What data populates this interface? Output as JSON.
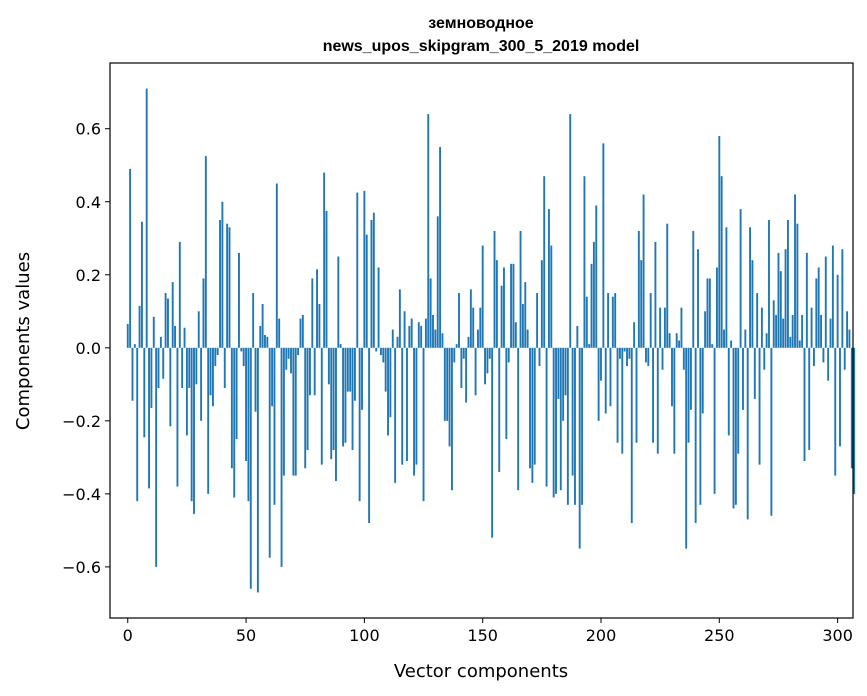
{
  "chart_data": {
    "type": "bar",
    "title": "земноводное",
    "subtitle": "news_upos_skipgram_300_5_2019 model",
    "xlabel": "Vector components",
    "ylabel": "Components values",
    "xlim": [
      -7.5,
      306.5
    ],
    "ylim": [
      -0.74,
      0.78
    ],
    "xticks": [
      0,
      50,
      100,
      150,
      200,
      250,
      300
    ],
    "yticks": [
      -0.6,
      -0.4,
      -0.2,
      0.0,
      0.2,
      0.4,
      0.6
    ],
    "ytick_labels": [
      "−0.6",
      "−0.4",
      "−0.2",
      "0.0",
      "0.2",
      "0.4",
      "0.6"
    ],
    "bar_color": "#1f77b4",
    "values": [
      0.065,
      0.49,
      -0.145,
      0.01,
      -0.42,
      0.115,
      0.345,
      -0.245,
      0.71,
      -0.385,
      -0.165,
      0.085,
      -0.6,
      -0.11,
      0.03,
      -0.085,
      0.15,
      0.135,
      -0.215,
      0.18,
      0.06,
      -0.38,
      0.29,
      -0.11,
      0.055,
      -0.24,
      -0.11,
      -0.42,
      -0.455,
      -0.1,
      0.1,
      -0.2,
      0.19,
      0.525,
      -0.4,
      -0.13,
      -0.16,
      -0.05,
      -0.02,
      0.35,
      0.4,
      -0.11,
      0.34,
      0.33,
      -0.33,
      -0.41,
      -0.25,
      0.26,
      -0.01,
      -0.05,
      -0.31,
      -0.42,
      -0.66,
      0.15,
      -0.175,
      -0.67,
      0.06,
      0.12,
      0.035,
      0.03,
      -0.575,
      -0.16,
      -0.43,
      0.45,
      0.08,
      -0.6,
      -0.35,
      -0.06,
      -0.03,
      -0.07,
      -0.35,
      -0.35,
      -0.02,
      0.08,
      0.09,
      -0.33,
      -0.28,
      -0.13,
      0.19,
      -0.13,
      0.215,
      0.12,
      -0.32,
      0.48,
      0.375,
      -0.1,
      -0.305,
      -0.28,
      -0.365,
      0.25,
      0.01,
      -0.27,
      -0.26,
      -0.12,
      -0.12,
      -0.28,
      -0.145,
      0.425,
      -0.42,
      -0.17,
      0.43,
      0.31,
      -0.48,
      0.35,
      0.37,
      -0.01,
      0.22,
      -0.02,
      -0.04,
      -0.12,
      -0.24,
      -0.19,
      0.05,
      -0.37,
      0.03,
      0.16,
      -0.32,
      0.1,
      -0.31,
      0.06,
      0.08,
      -0.35,
      -0.32,
      0.07,
      0.06,
      -0.42,
      0.08,
      0.64,
      0.19,
      0.09,
      0.05,
      0.36,
      0.55,
      0.04,
      -0.2,
      -0.2,
      -0.27,
      -0.39,
      -0.04,
      0.01,
      0.15,
      -0.11,
      -0.03,
      -0.15,
      0.03,
      0.16,
      0.11,
      -0.13,
      0.05,
      0.11,
      0.28,
      -0.1,
      -0.07,
      -0.03,
      -0.52,
      0.32,
      0.24,
      -0.34,
      0.17,
      0.22,
      -0.25,
      -0.04,
      0.23,
      0.23,
      0.07,
      -0.39,
      0.32,
      0.12,
      0.18,
      0.05,
      -0.33,
      -0.37,
      -0.32,
      0.15,
      -0.05,
      0.24,
      0.47,
      -0.38,
      0.38,
      0.28,
      -0.41,
      -0.4,
      -0.14,
      -0.39,
      -0.2,
      -0.13,
      -0.43,
      0.64,
      -0.35,
      -0.43,
      0.06,
      -0.55,
      -0.43,
      0.47,
      0.14,
      0.01,
      0.23,
      0.29,
      0.39,
      -0.2,
      -0.09,
      0.56,
      -0.18,
      0.15,
      -0.16,
      0.14,
      0.15,
      -0.26,
      -0.03,
      -0.29,
      -0.01,
      -0.05,
      -0.03,
      -0.48,
      0.07,
      -0.26,
      0.32,
      0.24,
      0.42,
      -0.04,
      -0.05,
      0.15,
      -0.26,
      0.29,
      -0.29,
      0.11,
      -0.06,
      0.11,
      0.34,
      0.04,
      -0.16,
      -0.29,
      0.04,
      0.02,
      0.11,
      -0.06,
      -0.55,
      -0.26,
      -0.17,
      0.32,
      -0.48,
      0.27,
      -0.43,
      -0.18,
      0.1,
      0.19,
      0.19,
      0.01,
      -0.4,
      0.22,
      0.58,
      0.47,
      0.05,
      0.33,
      -0.24,
      0.02,
      -0.44,
      -0.43,
      -0.29,
      0.38,
      -0.17,
      0.05,
      -0.47,
      0.33,
      0.24,
      -0.14,
      0.15,
      -0.32,
      0.11,
      -0.06,
      0.04,
      0.35,
      -0.46,
      0.13,
      0.09,
      0.26,
      0.21,
      0.08,
      0.27,
      0.35,
      0.03,
      0.09,
      0.42,
      0.34,
      0.02,
      0.09,
      -0.31,
      0.26,
      -0.28,
      0.11,
      -0.05,
      0.19,
      0.22,
      0.09,
      -0.04,
      0.25,
      -0.09,
      0.08,
      0.28,
      -0.35,
      0.2,
      -0.27,
      0.27,
      -0.06,
      0.1,
      0.05,
      -0.33,
      -0.4
    ]
  }
}
